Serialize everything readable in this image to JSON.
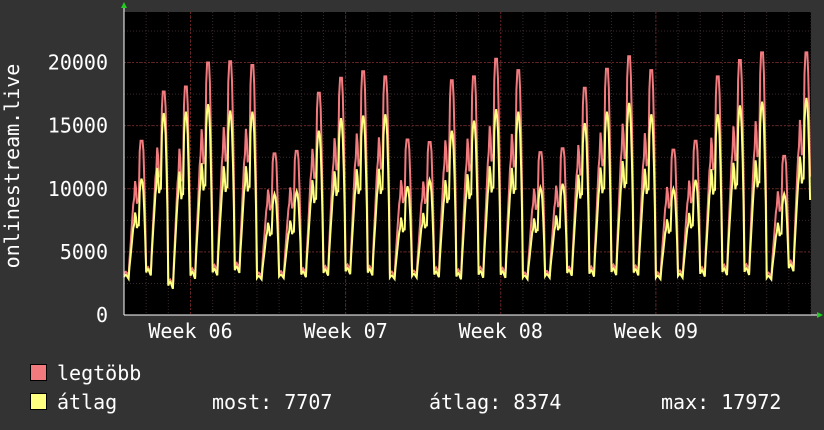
{
  "chart_data": {
    "type": "line",
    "ylabel": "onlinestream.live",
    "xlabel": "",
    "title": "",
    "ylim": [
      0,
      24000
    ],
    "y_ticks": [
      0,
      5000,
      10000,
      15000,
      20000
    ],
    "x_ticks": [
      "Week 06",
      "Week 07",
      "Week 08",
      "Week 09"
    ],
    "grid": true,
    "days": 31,
    "x_tick_days": [
      3,
      10,
      17,
      24
    ],
    "daily_max_peak": [
      13800,
      17700,
      18100,
      20000,
      20100,
      19800,
      12800,
      13000,
      17600,
      18800,
      19300,
      18900,
      13900,
      13700,
      18600,
      18900,
      20300,
      19400,
      12900,
      13200,
      18000,
      19500,
      20500,
      19400,
      13100,
      13800,
      18900,
      20200,
      20800,
      12600,
      20800
    ],
    "daily_avg_peak": [
      10800,
      16000,
      16100,
      16700,
      16200,
      16100,
      9600,
      9800,
      14600,
      15600,
      15800,
      15900,
      10200,
      10700,
      14600,
      15400,
      16300,
      16100,
      10100,
      10400,
      15200,
      16100,
      16800,
      15900,
      10000,
      10700,
      15900,
      16600,
      16900,
      9600,
      17200
    ],
    "daily_avg_min": [
      2600,
      2700,
      1600,
      2400,
      2700,
      2900,
      2600,
      2700,
      2600,
      2700,
      2800,
      2700,
      2600,
      2700,
      2600,
      2400,
      2500,
      2500,
      2600,
      2700,
      2700,
      2600,
      2700,
      2700,
      2600,
      2700,
      2600,
      2700,
      2700,
      2600,
      3000
    ],
    "series": [
      {
        "name": "legtöbb",
        "color": "#f17a7e"
      },
      {
        "name": "átlag",
        "color": "#ffff80"
      }
    ]
  },
  "legend": {
    "items": [
      {
        "label": "legtöbb",
        "color": "#f17a7e"
      },
      {
        "label": "átlag",
        "color": "#ffff80"
      }
    ]
  },
  "stats": {
    "now": "most: 7707",
    "avg": "átlag: 8374",
    "max": "max: 17972"
  }
}
